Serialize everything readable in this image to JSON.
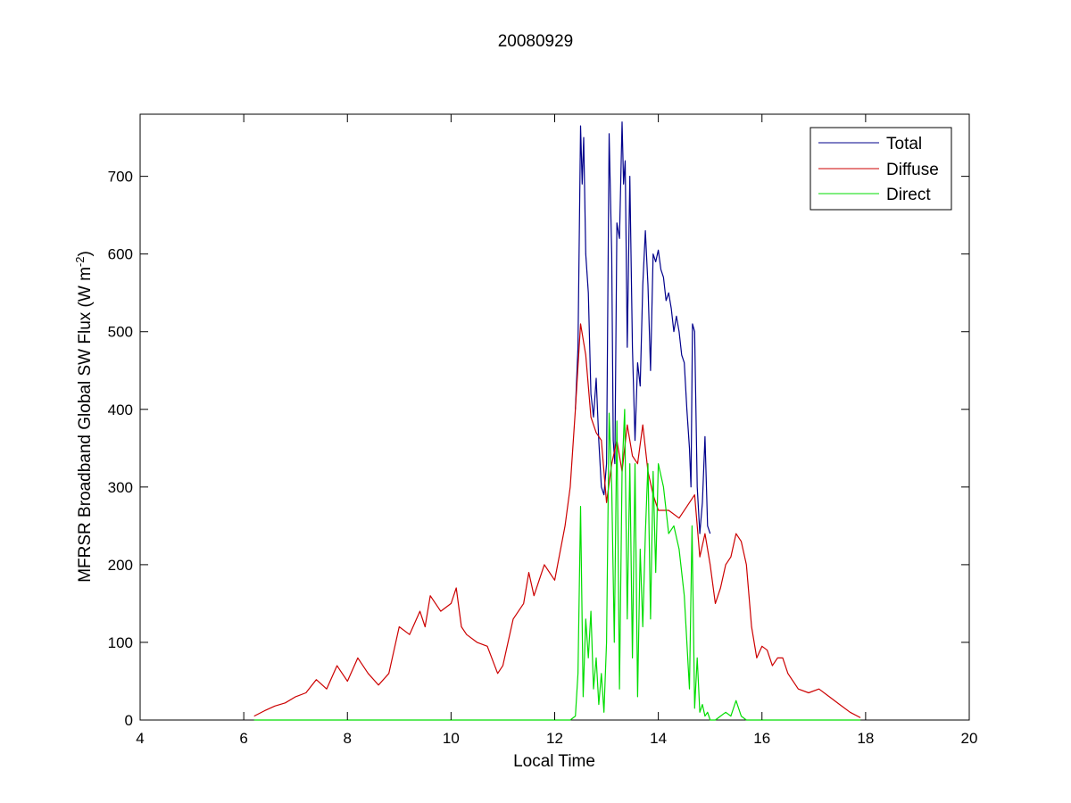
{
  "chart_data": {
    "type": "line",
    "title": "20080929",
    "xlabel": "Local Time",
    "ylabel": "MFRSR Broadband Global SW Flux (W m",
    "ylabel_sup": "-2",
    "ylabel_close": ")",
    "xlim": [
      4,
      20
    ],
    "ylim": [
      0,
      780
    ],
    "xticks": [
      4,
      6,
      8,
      10,
      12,
      14,
      16,
      18,
      20
    ],
    "yticks": [
      0,
      100,
      200,
      300,
      400,
      500,
      600,
      700
    ],
    "grid": false,
    "legend_position": "top-right",
    "series": [
      {
        "name": "Total",
        "color": "#00008B",
        "x": [
          12.4,
          12.45,
          12.5,
          12.53,
          12.56,
          12.6,
          12.65,
          12.7,
          12.75,
          12.8,
          12.85,
          12.9,
          12.95,
          13.0,
          13.05,
          13.1,
          13.13,
          13.16,
          13.2,
          13.25,
          13.3,
          13.33,
          13.36,
          13.4,
          13.45,
          13.5,
          13.55,
          13.6,
          13.65,
          13.7,
          13.75,
          13.8,
          13.85,
          13.9,
          13.95,
          14.0,
          14.05,
          14.1,
          14.15,
          14.2,
          14.25,
          14.3,
          14.35,
          14.4,
          14.45,
          14.5,
          14.55,
          14.6,
          14.63,
          14.66,
          14.7,
          14.75,
          14.8,
          14.85,
          14.9,
          14.95,
          15.0
        ],
        "values": [
          400,
          480,
          765,
          690,
          750,
          600,
          550,
          420,
          390,
          440,
          360,
          300,
          290,
          330,
          755,
          600,
          360,
          330,
          640,
          620,
          770,
          690,
          720,
          480,
          700,
          480,
          360,
          460,
          430,
          560,
          630,
          560,
          450,
          600,
          590,
          605,
          580,
          570,
          540,
          550,
          530,
          500,
          520,
          500,
          470,
          460,
          400,
          350,
          300,
          510,
          500,
          300,
          240,
          280,
          365,
          250,
          240
        ]
      },
      {
        "name": "Diffuse",
        "color": "#CC0000",
        "x": [
          6.2,
          6.4,
          6.6,
          6.8,
          7.0,
          7.2,
          7.4,
          7.6,
          7.8,
          8.0,
          8.2,
          8.4,
          8.6,
          8.8,
          9.0,
          9.2,
          9.4,
          9.5,
          9.6,
          9.8,
          10.0,
          10.1,
          10.2,
          10.3,
          10.5,
          10.7,
          10.9,
          11.0,
          11.2,
          11.4,
          11.5,
          11.6,
          11.8,
          12.0,
          12.2,
          12.3,
          12.4,
          12.5,
          12.6,
          12.7,
          12.8,
          12.9,
          13.0,
          13.1,
          13.2,
          13.3,
          13.4,
          13.5,
          13.6,
          13.7,
          13.8,
          13.9,
          14.0,
          14.2,
          14.4,
          14.6,
          14.7,
          14.8,
          14.9,
          15.0,
          15.1,
          15.2,
          15.3,
          15.4,
          15.5,
          15.6,
          15.7,
          15.8,
          15.9,
          16.0,
          16.1,
          16.2,
          16.3,
          16.4,
          16.5,
          16.7,
          16.9,
          17.1,
          17.3,
          17.5,
          17.7,
          17.9
        ],
        "values": [
          5,
          12,
          18,
          22,
          30,
          35,
          52,
          40,
          70,
          50,
          80,
          60,
          45,
          60,
          120,
          110,
          140,
          120,
          160,
          140,
          150,
          170,
          120,
          110,
          100,
          95,
          60,
          70,
          130,
          150,
          190,
          160,
          200,
          180,
          250,
          300,
          400,
          510,
          470,
          390,
          370,
          360,
          280,
          330,
          360,
          320,
          380,
          340,
          330,
          380,
          320,
          290,
          270,
          270,
          260,
          280,
          290,
          210,
          240,
          200,
          150,
          170,
          200,
          210,
          240,
          230,
          200,
          120,
          80,
          95,
          90,
          70,
          80,
          80,
          60,
          40,
          35,
          40,
          30,
          20,
          10,
          3
        ]
      },
      {
        "name": "Direct",
        "color": "#00DD00",
        "x": [
          6.2,
          12.3,
          12.4,
          12.45,
          12.5,
          12.55,
          12.6,
          12.65,
          12.7,
          12.75,
          12.8,
          12.85,
          12.9,
          12.95,
          13.0,
          13.05,
          13.1,
          13.15,
          13.2,
          13.25,
          13.3,
          13.35,
          13.4,
          13.45,
          13.5,
          13.55,
          13.6,
          13.65,
          13.7,
          13.75,
          13.8,
          13.85,
          13.9,
          13.95,
          14.0,
          14.1,
          14.2,
          14.3,
          14.4,
          14.5,
          14.6,
          14.65,
          14.7,
          14.75,
          14.8,
          14.85,
          14.9,
          14.95,
          15.0,
          15.1,
          15.2,
          15.3,
          15.4,
          15.5,
          15.6,
          15.7,
          17.9
        ],
        "values": [
          0,
          0,
          5,
          60,
          275,
          30,
          130,
          80,
          140,
          40,
          80,
          20,
          60,
          10,
          100,
          395,
          300,
          100,
          385,
          40,
          320,
          400,
          130,
          330,
          80,
          330,
          30,
          220,
          120,
          240,
          330,
          130,
          320,
          190,
          330,
          300,
          240,
          250,
          220,
          160,
          40,
          250,
          15,
          80,
          10,
          20,
          5,
          10,
          0,
          0,
          5,
          10,
          5,
          25,
          5,
          0,
          0
        ]
      }
    ]
  }
}
